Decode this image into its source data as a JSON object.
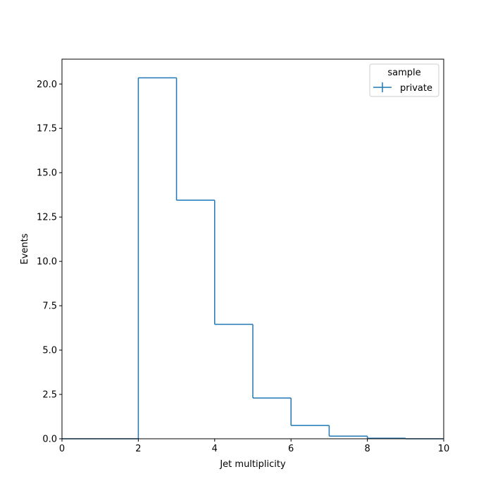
{
  "chart_data": {
    "type": "histogram-step",
    "xlabel": "Jet multiplicity",
    "ylabel": "Events",
    "xlim": [
      0,
      10
    ],
    "ylim": [
      0,
      21.4
    ],
    "xticks": [
      0,
      2,
      4,
      6,
      8,
      10
    ],
    "xtick_labels": [
      "0",
      "2",
      "4",
      "6",
      "8",
      "10"
    ],
    "yticks": [
      0,
      2.5,
      5,
      7.5,
      10,
      12.5,
      15,
      17.5,
      20
    ],
    "ytick_labels": [
      "0.0",
      "2.5",
      "5.0",
      "7.5",
      "10.0",
      "12.5",
      "15.0",
      "17.5",
      "20.0"
    ],
    "bin_edges": [
      0,
      1,
      2,
      3,
      4,
      5,
      6,
      7,
      8,
      9,
      10
    ],
    "series": [
      {
        "name": "private",
        "color": "#1f77b4",
        "values": [
          0,
          0,
          20.35,
          13.45,
          6.45,
          2.3,
          0.75,
          0.15,
          0.03,
          0
        ]
      }
    ],
    "legend": {
      "title": "sample",
      "placement": "top-right",
      "entries": [
        "private"
      ]
    },
    "grid": false
  }
}
